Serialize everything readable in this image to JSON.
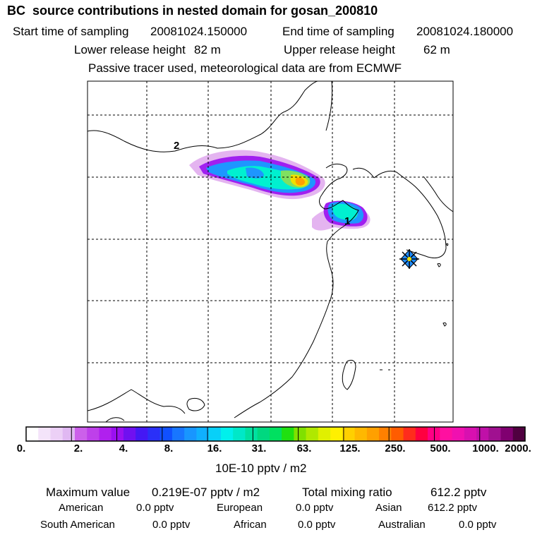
{
  "header": {
    "title": "BC  source contributions in nested domain for gosan_200810",
    "start_label": "Start time of sampling",
    "start_value": "20081024.150000",
    "end_label": "End time of sampling",
    "end_value": "20081024.180000",
    "lower_label": "Lower release height",
    "lower_value": "82 m",
    "upper_label": "Upper release height",
    "upper_value": "62 m",
    "note": "Passive tracer used, meteorological data are from ECMWF"
  },
  "map": {
    "labels": [
      "2",
      "1"
    ],
    "contour_colors": [
      "#e4b4f0",
      "#a020f0",
      "#1e96ff",
      "#00f0d0",
      "#80e060",
      "#f0e000",
      "#ffa000"
    ]
  },
  "colorbar": {
    "ticks": [
      "0.",
      "2.",
      "4.",
      "8.",
      "16.",
      "31.",
      "63.",
      "125.",
      "250.",
      "500.",
      "1000.",
      "2000."
    ],
    "colors": [
      "#ffffff",
      "#f4e4fa",
      "#ecd0f6",
      "#e0b8f2",
      "#cc60ea",
      "#be40ea",
      "#b020ee",
      "#9a10f0",
      "#7010f0",
      "#4418f4",
      "#2a30f8",
      "#1050ff",
      "#1876ff",
      "#1896ff",
      "#10b0ff",
      "#08d0f8",
      "#00f0ec",
      "#00e8c8",
      "#00e0a0",
      "#00d880",
      "#00e060",
      "#20e010",
      "#80e000",
      "#b0e800",
      "#e0f000",
      "#fff000",
      "#ffd000",
      "#ffb800",
      "#ffa000",
      "#ff8000",
      "#ff5c00",
      "#ff2c1c",
      "#ff0040",
      "#ff0084",
      "#ff10a0",
      "#f010b0",
      "#d810b0",
      "#c010a8",
      "#a01090",
      "#800070",
      "#500040"
    ],
    "unit": "10E-10 pptv / m2"
  },
  "summary": {
    "max_label": "Maximum value",
    "max_value": "0.219E-07 pptv / m2",
    "total_label": "Total mixing ratio",
    "total_value": "612.2 pptv",
    "regions": [
      {
        "name": "American",
        "value": "0.0 pptv"
      },
      {
        "name": "European",
        "value": "0.0 pptv"
      },
      {
        "name": "Asian",
        "value": "612.2 pptv"
      },
      {
        "name": "South American",
        "value": "0.0 pptv"
      },
      {
        "name": "African",
        "value": "0.0 pptv"
      },
      {
        "name": "Australian",
        "value": "0.0 pptv"
      }
    ]
  }
}
